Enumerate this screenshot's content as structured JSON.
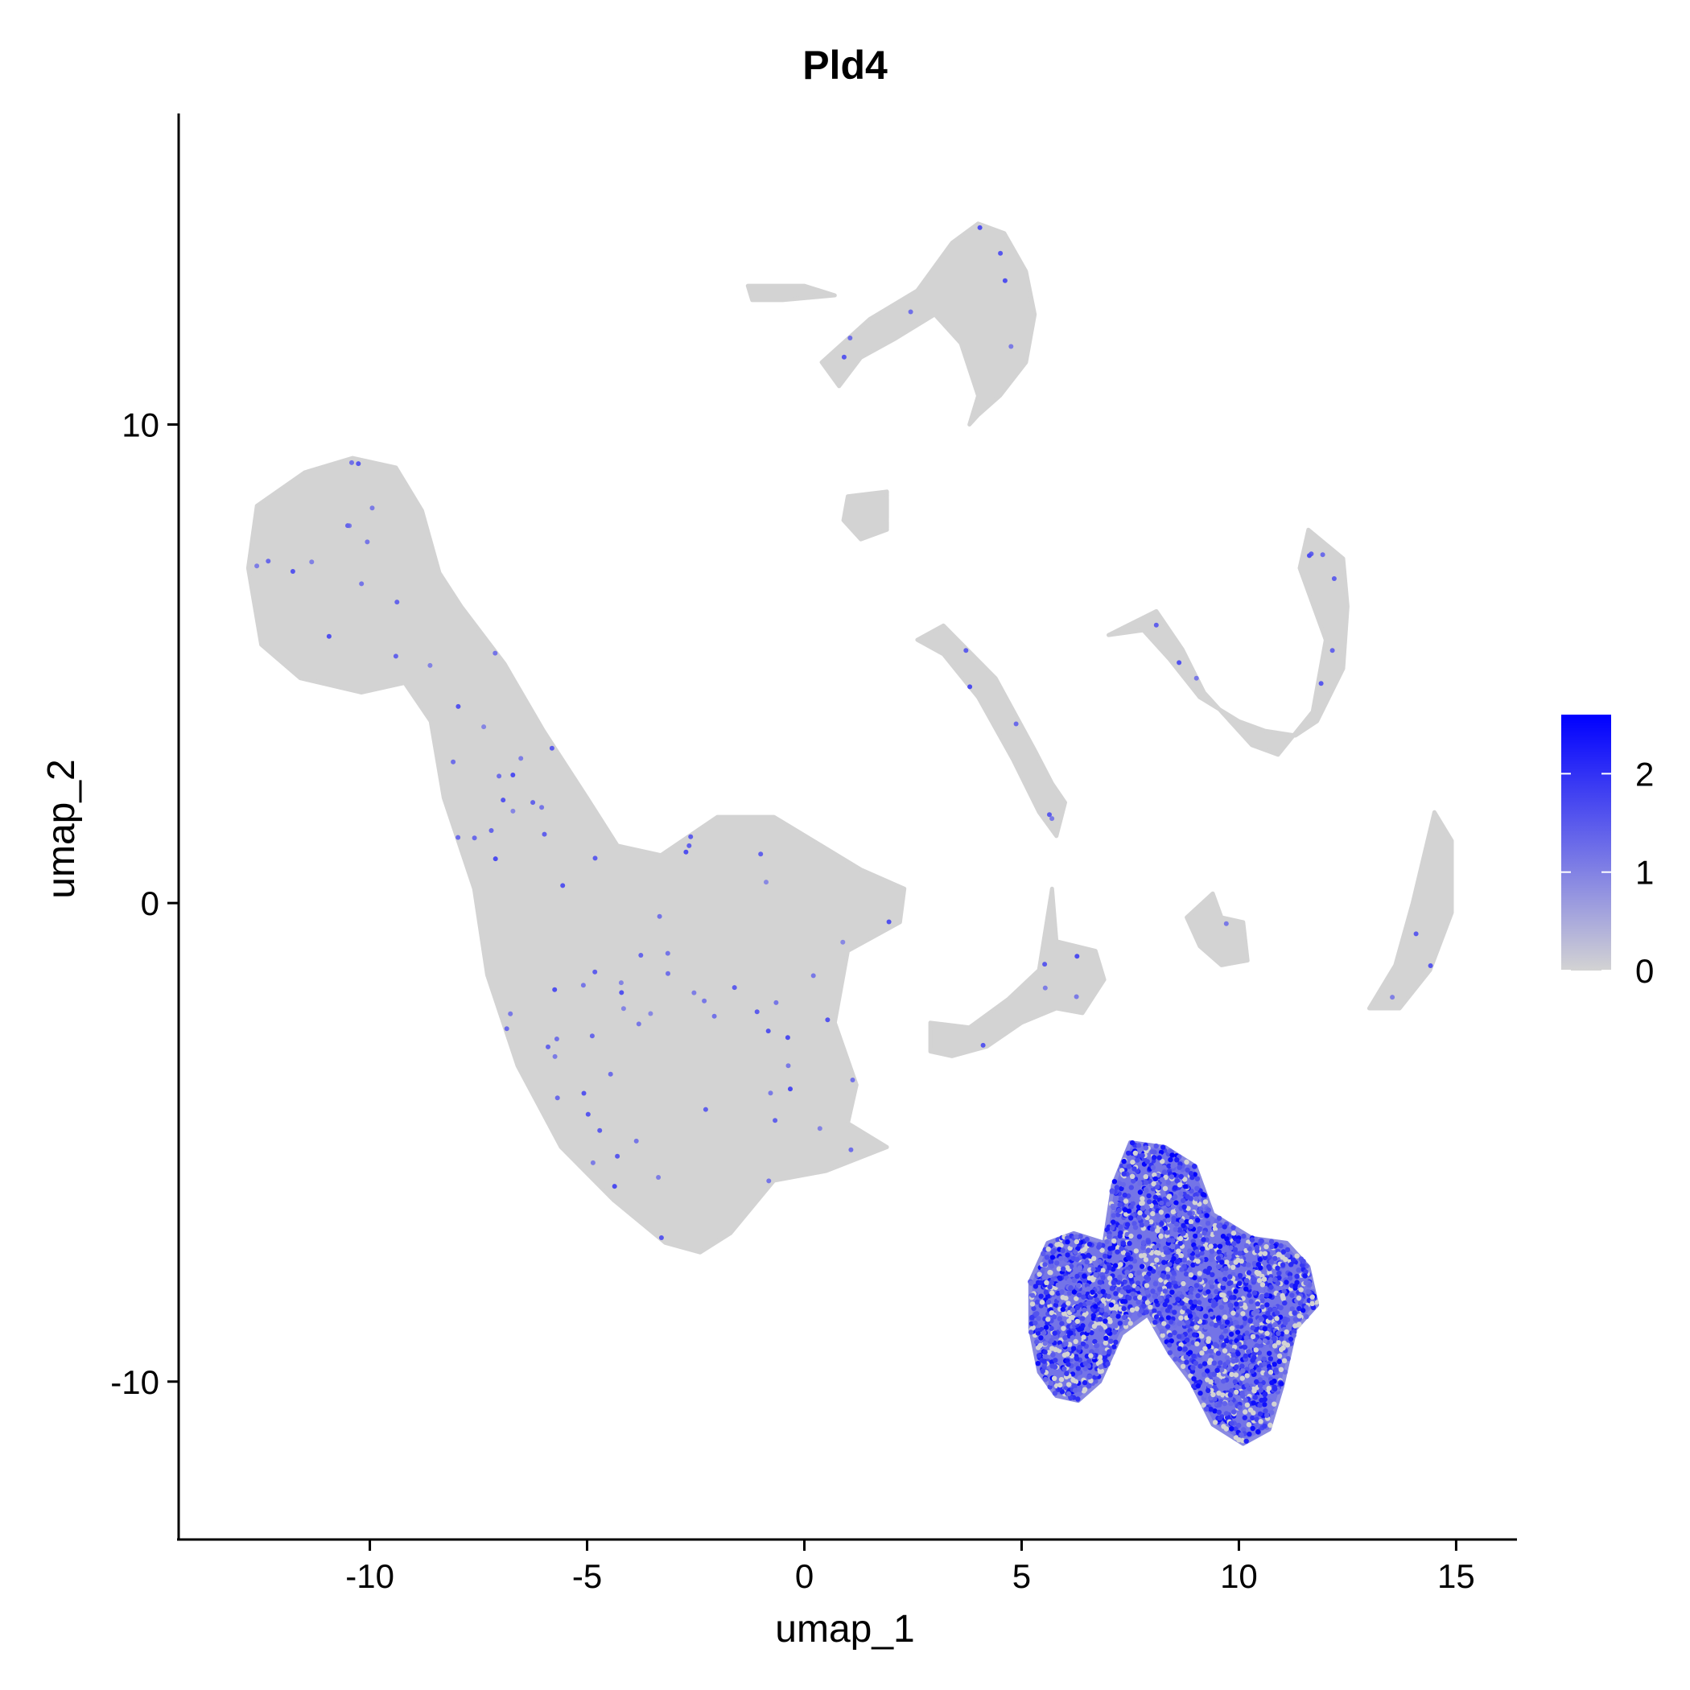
{
  "chart_data": {
    "type": "scatter",
    "title": "Pld4",
    "xlabel": "umap_1",
    "ylabel": "umap_2",
    "xlim": [
      -14.4,
      16.4
    ],
    "ylim": [
      -13.3,
      16.5
    ],
    "x_ticks": [
      -10,
      -5,
      0,
      5,
      10,
      15
    ],
    "y_ticks": [
      -10,
      0,
      10
    ],
    "x_tick_labels": [
      "-10",
      "-5",
      "0",
      "5",
      "10",
      "15"
    ],
    "y_tick_labels": [
      "-10",
      "0",
      "10"
    ],
    "grid": false,
    "legend": {
      "placement": "right",
      "type": "colorbar",
      "min": 0,
      "max": 2.6,
      "ticks": [
        0,
        1,
        2
      ],
      "tick_labels": [
        "0",
        "1",
        "2"
      ],
      "colors": [
        "#D3D3D3",
        "#0000FF"
      ]
    },
    "point_color_low": "#D3D3D3",
    "point_color_high": "#0000FF",
    "clusters": [
      {
        "id": "large-main",
        "expression": "low",
        "outline": [
          [
            -12.6,
            8.3
          ],
          [
            -11.5,
            9.0
          ],
          [
            -10.4,
            9.3
          ],
          [
            -9.4,
            9.1
          ],
          [
            -8.8,
            8.2
          ],
          [
            -8.4,
            6.9
          ],
          [
            -7.9,
            6.2
          ],
          [
            -6.9,
            5.0
          ],
          [
            -6.0,
            3.6
          ],
          [
            -5.0,
            2.2
          ],
          [
            -4.3,
            1.2
          ],
          [
            -3.3,
            1.0
          ],
          [
            -2.0,
            1.8
          ],
          [
            -0.7,
            1.8
          ],
          [
            1.3,
            0.7
          ],
          [
            2.3,
            0.3
          ],
          [
            2.2,
            -0.4
          ],
          [
            1.0,
            -1.0
          ],
          [
            0.7,
            -2.5
          ],
          [
            1.2,
            -3.8
          ],
          [
            1.0,
            -4.6
          ],
          [
            1.9,
            -5.1
          ],
          [
            0.5,
            -5.6
          ],
          [
            -0.7,
            -5.8
          ],
          [
            -1.7,
            -6.9
          ],
          [
            -2.4,
            -7.3
          ],
          [
            -3.2,
            -7.1
          ],
          [
            -4.4,
            -6.2
          ],
          [
            -5.6,
            -5.1
          ],
          [
            -6.6,
            -3.4
          ],
          [
            -7.3,
            -1.5
          ],
          [
            -7.6,
            0.3
          ],
          [
            -8.3,
            2.2
          ],
          [
            -8.6,
            3.8
          ],
          [
            -9.2,
            4.6
          ],
          [
            -10.2,
            4.4
          ],
          [
            -11.6,
            4.7
          ],
          [
            -12.5,
            5.4
          ],
          [
            -12.8,
            7.0
          ]
        ]
      },
      {
        "id": "top-small",
        "expression": "low",
        "outline": [
          [
            -1.3,
            12.9
          ],
          [
            0.0,
            12.9
          ],
          [
            0.7,
            12.7
          ],
          [
            -0.5,
            12.6
          ],
          [
            -1.2,
            12.6
          ]
        ]
      },
      {
        "id": "top-arc",
        "expression": "low",
        "outline": [
          [
            0.4,
            11.3
          ],
          [
            1.5,
            12.2
          ],
          [
            2.6,
            12.8
          ],
          [
            3.4,
            13.8
          ],
          [
            4.0,
            14.2
          ],
          [
            4.6,
            14.0
          ],
          [
            5.1,
            13.2
          ],
          [
            5.3,
            12.3
          ],
          [
            5.1,
            11.3
          ],
          [
            4.5,
            10.6
          ],
          [
            4.0,
            10.2
          ],
          [
            3.8,
            10.0
          ],
          [
            4.0,
            10.6
          ],
          [
            3.6,
            11.7
          ],
          [
            3.0,
            12.3
          ],
          [
            2.1,
            11.8
          ],
          [
            1.3,
            11.4
          ],
          [
            0.8,
            10.8
          ]
        ]
      },
      {
        "id": "small-blob",
        "expression": "low",
        "outline": [
          [
            1.0,
            8.5
          ],
          [
            1.9,
            8.6
          ],
          [
            1.9,
            7.8
          ],
          [
            1.3,
            7.6
          ],
          [
            0.9,
            8.0
          ]
        ]
      },
      {
        "id": "thin-diagonal",
        "expression": "low",
        "outline": [
          [
            2.6,
            5.5
          ],
          [
            3.2,
            5.8
          ],
          [
            4.4,
            4.7
          ],
          [
            5.3,
            3.2
          ],
          [
            5.7,
            2.5
          ],
          [
            6.0,
            2.1
          ],
          [
            5.8,
            1.4
          ],
          [
            5.4,
            1.9
          ],
          [
            4.8,
            3.0
          ],
          [
            4.0,
            4.3
          ],
          [
            3.2,
            5.2
          ]
        ]
      },
      {
        "id": "right-arc",
        "expression": "low",
        "outline": [
          [
            7.0,
            5.6
          ],
          [
            8.1,
            6.1
          ],
          [
            8.7,
            5.3
          ],
          [
            9.2,
            4.4
          ],
          [
            10.3,
            3.3
          ],
          [
            10.9,
            3.1
          ],
          [
            11.7,
            4.0
          ],
          [
            12.0,
            5.5
          ],
          [
            11.4,
            7.0
          ],
          [
            11.6,
            7.8
          ],
          [
            12.4,
            7.2
          ],
          [
            12.5,
            6.2
          ],
          [
            12.4,
            4.9
          ],
          [
            11.8,
            3.8
          ],
          [
            11.3,
            3.5
          ],
          [
            10.6,
            3.6
          ],
          [
            10.0,
            3.8
          ],
          [
            9.1,
            4.3
          ],
          [
            8.4,
            5.1
          ],
          [
            7.8,
            5.7
          ]
        ]
      },
      {
        "id": "middle-branch",
        "expression": "low",
        "outline": [
          [
            2.9,
            -2.5
          ],
          [
            3.8,
            -2.6
          ],
          [
            4.7,
            -2.0
          ],
          [
            5.4,
            -1.4
          ],
          [
            5.7,
            0.3
          ],
          [
            5.8,
            -0.8
          ],
          [
            6.7,
            -1.0
          ],
          [
            6.9,
            -1.6
          ],
          [
            6.4,
            -2.3
          ],
          [
            5.8,
            -2.2
          ],
          [
            5.0,
            -2.5
          ],
          [
            4.2,
            -3.0
          ],
          [
            3.4,
            -3.2
          ],
          [
            2.9,
            -3.1
          ]
        ]
      },
      {
        "id": "small-right",
        "expression": "low",
        "outline": [
          [
            8.8,
            -0.3
          ],
          [
            9.4,
            0.2
          ],
          [
            9.6,
            -0.3
          ],
          [
            10.1,
            -0.4
          ],
          [
            10.2,
            -1.2
          ],
          [
            9.6,
            -1.3
          ],
          [
            9.1,
            -0.9
          ]
        ]
      },
      {
        "id": "far-right",
        "expression": "low",
        "outline": [
          [
            13.6,
            -1.3
          ],
          [
            14.0,
            0.0
          ],
          [
            14.5,
            1.9
          ],
          [
            14.9,
            1.3
          ],
          [
            14.9,
            -0.2
          ],
          [
            14.4,
            -1.4
          ],
          [
            13.7,
            -2.2
          ],
          [
            13.0,
            -2.2
          ]
        ]
      },
      {
        "id": "pdc-high",
        "expression": "high",
        "outline": [
          [
            5.2,
            -7.9
          ],
          [
            5.6,
            -7.1
          ],
          [
            6.2,
            -6.9
          ],
          [
            6.9,
            -7.1
          ],
          [
            7.1,
            -5.9
          ],
          [
            7.5,
            -5.0
          ],
          [
            8.3,
            -5.1
          ],
          [
            9.0,
            -5.5
          ],
          [
            9.4,
            -6.5
          ],
          [
            10.3,
            -7.0
          ],
          [
            11.1,
            -7.1
          ],
          [
            11.6,
            -7.6
          ],
          [
            11.8,
            -8.4
          ],
          [
            11.3,
            -8.9
          ],
          [
            11.0,
            -10.1
          ],
          [
            10.7,
            -11.0
          ],
          [
            10.1,
            -11.3
          ],
          [
            9.4,
            -10.9
          ],
          [
            8.9,
            -10.0
          ],
          [
            8.4,
            -9.4
          ],
          [
            7.9,
            -8.6
          ],
          [
            7.3,
            -9.0
          ],
          [
            6.8,
            -10.0
          ],
          [
            6.3,
            -10.4
          ],
          [
            5.8,
            -10.3
          ],
          [
            5.4,
            -9.8
          ],
          [
            5.2,
            -8.9
          ]
        ]
      }
    ]
  }
}
